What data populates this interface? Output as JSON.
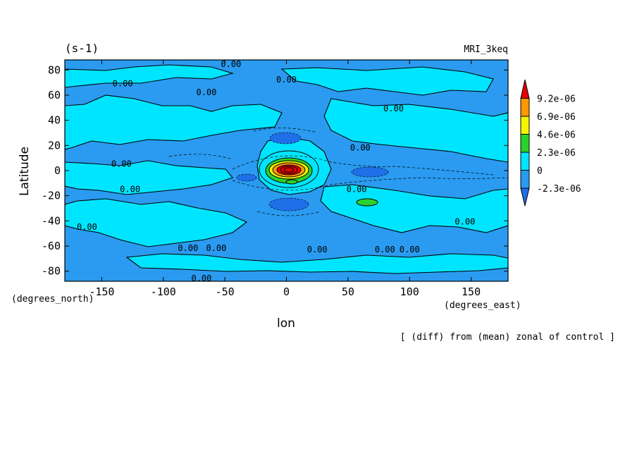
{
  "chart_data": {
    "type": "contour-map",
    "units_label": "(s-1)",
    "model_label": "MRI_3keq",
    "xlabel": "lon",
    "ylabel": "Latitude",
    "x_units": "(degrees_east)",
    "y_units": "(degrees_north)",
    "footnote": "[ (diff) from (mean) zonal of control ]",
    "xlim": [
      -180,
      180
    ],
    "ylim": [
      -88,
      88
    ],
    "x_ticks": [
      -150,
      -100,
      -50,
      0,
      50,
      100,
      150
    ],
    "x_tick_labels": [
      "-150",
      "-100",
      "-50",
      "0",
      "50",
      "100",
      "150"
    ],
    "y_ticks": [
      -80,
      -60,
      -40,
      -20,
      0,
      20,
      40,
      60,
      80
    ],
    "y_tick_labels": [
      "-80",
      "-60",
      "-40",
      "-20",
      "0",
      "20",
      "40",
      "60",
      "80"
    ],
    "colorbar": {
      "levels": [
        -2.3e-06,
        0,
        2.3e-06,
        4.6e-06,
        6.9e-06,
        9.2e-06
      ],
      "labels": [
        "-2.3e-06",
        "0",
        "2.3e-06",
        "4.6e-06",
        "6.9e-06",
        "9.2e-06"
      ],
      "colors": [
        "#1e6fe8",
        "#2a9bf0",
        "#00e5ff",
        "#2bd22b",
        "#f5f500",
        "#ff9900",
        "#e80000"
      ]
    },
    "contour_labels": [
      {
        "text": "0.00",
        "lon": -45,
        "lat": 85
      },
      {
        "text": "0.00",
        "lon": -133,
        "lat": 67
      },
      {
        "text": "0.00",
        "lon": -65,
        "lat": 60
      },
      {
        "text": "0.00",
        "lon": 0,
        "lat": 70
      },
      {
        "text": "0.00",
        "lon": 87,
        "lat": 47
      },
      {
        "text": "0.00",
        "lon": 60,
        "lat": 16
      },
      {
        "text": "0.00",
        "lon": -134,
        "lat": 3
      },
      {
        "text": "0.00",
        "lon": -127,
        "lat": -17
      },
      {
        "text": "0.00",
        "lon": 57,
        "lat": -17
      },
      {
        "text": "0.00",
        "lon": -162,
        "lat": -47
      },
      {
        "text": "0.00",
        "lon": 145,
        "lat": -43
      },
      {
        "text": "0.00",
        "lon": -80,
        "lat": -64
      },
      {
        "text": "0.00",
        "lon": -57,
        "lat": -64
      },
      {
        "text": "0.00",
        "lon": 25,
        "lat": -65
      },
      {
        "text": "0.00",
        "lon": 80,
        "lat": -65
      },
      {
        "text": "0.00",
        "lon": 100,
        "lat": -65
      },
      {
        "text": "0.00",
        "lon": -69,
        "lat": -88
      }
    ]
  }
}
